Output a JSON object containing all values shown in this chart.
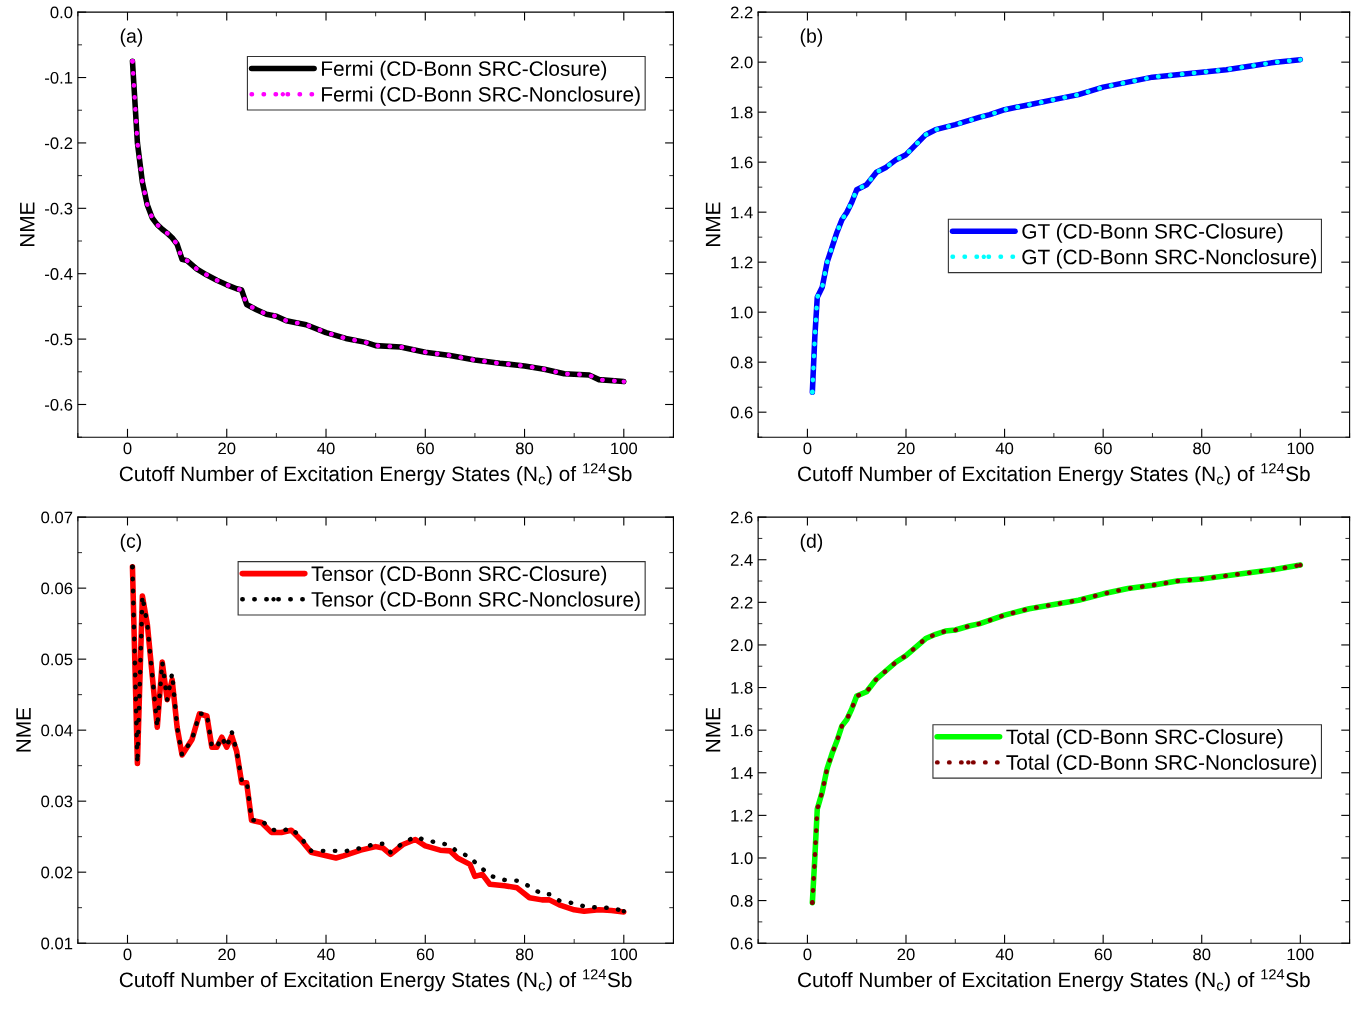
{
  "chart_data": [
    {
      "type": "line",
      "xlabel": "Cutoff Number of Excitation Energy States (N$_{c}$) of $^{124}$Sb",
      "ylabel": "NME",
      "annotations": [
        "(a)"
      ],
      "legend": "top right",
      "xlim": [
        -10,
        110
      ],
      "xticks": [
        0,
        20,
        40,
        60,
        80,
        100
      ],
      "ylim": [
        -0.65,
        0.0
      ],
      "yticks": [
        {
          "value": 0,
          "label": "0.0"
        },
        -0.1,
        -0.2,
        -0.3,
        -0.4,
        -0.5,
        -0.6
      ],
      "x": [
        1,
        2,
        3,
        4,
        5,
        6,
        7,
        8,
        9,
        10,
        11,
        12,
        14,
        16,
        18,
        20,
        22,
        23,
        24,
        26,
        28,
        30,
        32,
        36,
        40,
        44,
        48,
        50,
        55,
        60,
        65,
        70,
        75,
        80,
        84,
        88,
        93,
        95,
        100
      ],
      "series": [
        {
          "name": "Fermi (CD-Bonn SRC-Closure)",
          "color": "#000000",
          "line_style": "solid",
          "values": [
            -0.075,
            -0.2,
            -0.26,
            -0.295,
            -0.315,
            -0.325,
            -0.332,
            -0.338,
            -0.345,
            -0.355,
            -0.378,
            -0.38,
            -0.393,
            -0.402,
            -0.41,
            -0.417,
            -0.423,
            -0.425,
            -0.447,
            -0.455,
            -0.462,
            -0.465,
            -0.472,
            -0.478,
            -0.49,
            -0.499,
            -0.505,
            -0.51,
            -0.512,
            -0.52,
            -0.525,
            -0.532,
            -0.537,
            -0.541,
            -0.546,
            -0.553,
            -0.555,
            -0.562,
            -0.565
          ]
        },
        {
          "name": "Fermi (CD-Bonn SRC-Nonclosure)",
          "color": "#ff00ff",
          "line_style": "dotted",
          "values": [
            -0.075,
            -0.2,
            -0.26,
            -0.295,
            -0.315,
            -0.325,
            -0.332,
            -0.338,
            -0.345,
            -0.355,
            -0.378,
            -0.38,
            -0.393,
            -0.402,
            -0.41,
            -0.417,
            -0.423,
            -0.425,
            -0.447,
            -0.455,
            -0.462,
            -0.465,
            -0.472,
            -0.478,
            -0.49,
            -0.499,
            -0.505,
            -0.51,
            -0.512,
            -0.52,
            -0.525,
            -0.532,
            -0.537,
            -0.541,
            -0.546,
            -0.553,
            -0.555,
            -0.562,
            -0.565
          ]
        }
      ]
    },
    {
      "type": "line",
      "xlabel": "Cutoff Number of Excitation Energy States (N$_{c}$) of $^{124}$Sb",
      "ylabel": "NME",
      "annotations": [
        "(b)"
      ],
      "legend": "center right",
      "xlim": [
        -10,
        110
      ],
      "xticks": [
        0,
        20,
        40,
        60,
        80,
        100
      ],
      "ylim": [
        0.5,
        2.2
      ],
      "yticks": [
        0.6,
        0.8,
        {
          "value": 1,
          "label": "1.0"
        },
        1.2,
        1.4,
        1.6,
        1.8,
        {
          "value": 2,
          "label": "2.0"
        },
        2.2
      ],
      "x": [
        1,
        1.5,
        2,
        3,
        4,
        5,
        6,
        7,
        8,
        9,
        10,
        11,
        12,
        14,
        16,
        18,
        20,
        22,
        24,
        26,
        28,
        30,
        35,
        37,
        40,
        45,
        50,
        55,
        60,
        65,
        70,
        75,
        80,
        85,
        90,
        95,
        100
      ],
      "series": [
        {
          "name": "GT (CD-Bonn SRC-Closure)",
          "color": "#0000ff",
          "line_style": "solid",
          "values": [
            0.68,
            0.9,
            1.06,
            1.1,
            1.2,
            1.26,
            1.32,
            1.37,
            1.4,
            1.44,
            1.49,
            1.5,
            1.51,
            1.56,
            1.58,
            1.61,
            1.63,
            1.67,
            1.71,
            1.73,
            1.74,
            1.75,
            1.78,
            1.79,
            1.81,
            1.83,
            1.85,
            1.87,
            1.9,
            1.92,
            1.94,
            1.95,
            1.96,
            1.97,
            1.985,
            2.0,
            2.01
          ]
        },
        {
          "name": "GT (CD-Bonn SRC-Nonclosure)",
          "color": "#00ffff",
          "line_style": "dotted",
          "values": [
            0.68,
            0.9,
            1.06,
            1.1,
            1.2,
            1.26,
            1.32,
            1.37,
            1.4,
            1.44,
            1.49,
            1.5,
            1.51,
            1.56,
            1.58,
            1.61,
            1.63,
            1.67,
            1.71,
            1.73,
            1.74,
            1.75,
            1.78,
            1.79,
            1.81,
            1.83,
            1.85,
            1.87,
            1.9,
            1.92,
            1.94,
            1.95,
            1.96,
            1.97,
            1.985,
            2.0,
            2.01
          ]
        }
      ]
    },
    {
      "type": "line",
      "xlabel": "Cutoff Number of Excitation Energy States (N$_{c}$) of $^{124}$Sb",
      "ylabel": "NME",
      "annotations": [
        "(c)"
      ],
      "legend": "top right",
      "xlim": [
        -10,
        110
      ],
      "xticks": [
        0,
        20,
        40,
        60,
        80,
        100
      ],
      "ylim": [
        0.01,
        0.07
      ],
      "yticks": [
        0.01,
        0.02,
        0.03,
        0.04,
        0.05,
        0.06,
        0.07
      ],
      "x": [
        1,
        2,
        3,
        4,
        5,
        6,
        7,
        8,
        9,
        10,
        11,
        13,
        14.5,
        16,
        17,
        18,
        19,
        20,
        21,
        22,
        23,
        24,
        25,
        27,
        29,
        31,
        33,
        35,
        37,
        39,
        42,
        43.5,
        47,
        50,
        51.5,
        53,
        55.5,
        58,
        60,
        63,
        65,
        66.5,
        69,
        70,
        71.5,
        73,
        76,
        78.5,
        81,
        83.5,
        85,
        87,
        90,
        92,
        95,
        97.5,
        100
      ],
      "series": [
        {
          "name": "Tensor (CD-Bonn SRC-Closure)",
          "color": "#ff0000",
          "line_style": "solid",
          "values": [
            0.063,
            0.0353,
            0.0589,
            0.0549,
            0.0476,
            0.0404,
            0.0496,
            0.0443,
            0.0471,
            0.0404,
            0.0365,
            0.0387,
            0.0423,
            0.042,
            0.0376,
            0.0376,
            0.039,
            0.0376,
            0.0392,
            0.037,
            0.0326,
            0.0326,
            0.0273,
            0.027,
            0.0256,
            0.0256,
            0.0259,
            0.0245,
            0.0228,
            0.0225,
            0.022,
            0.0223,
            0.0231,
            0.0236,
            0.0234,
            0.0225,
            0.0239,
            0.0246,
            0.0237,
            0.0231,
            0.023,
            0.022,
            0.0211,
            0.0194,
            0.0197,
            0.0183,
            0.0181,
            0.0178,
            0.0164,
            0.0161,
            0.0161,
            0.0154,
            0.0147,
            0.0145,
            0.0147,
            0.0146,
            0.0144
          ]
        },
        {
          "name": "Tensor (CD-Bonn SRC-Nonclosure)",
          "color": "#000000",
          "line_style": "dotted",
          "values": [
            0.063,
            0.0353,
            0.0589,
            0.0549,
            0.0476,
            0.0404,
            0.0496,
            0.0443,
            0.048,
            0.0404,
            0.0365,
            0.0387,
            0.0423,
            0.0423,
            0.0376,
            0.0376,
            0.039,
            0.0376,
            0.0398,
            0.037,
            0.033,
            0.033,
            0.0273,
            0.0273,
            0.026,
            0.0258,
            0.0262,
            0.0248,
            0.023,
            0.023,
            0.023,
            0.0229,
            0.0234,
            0.024,
            0.024,
            0.0228,
            0.0241,
            0.025,
            0.0245,
            0.0241,
            0.0238,
            0.0228,
            0.0222,
            0.0214,
            0.0205,
            0.0195,
            0.0189,
            0.0188,
            0.018,
            0.0169,
            0.0169,
            0.016,
            0.0156,
            0.0152,
            0.015,
            0.015,
            0.0145
          ]
        }
      ]
    },
    {
      "type": "line",
      "xlabel": "Cutoff Number of Excitation Energy States (N$_{c}$) of $^{124}$Sb",
      "ylabel": "NME",
      "annotations": [
        "(d)"
      ],
      "legend": "center right",
      "xlim": [
        -10,
        110
      ],
      "xticks": [
        0,
        20,
        40,
        60,
        80,
        100
      ],
      "ylim": [
        0.6,
        2.6
      ],
      "yticks": [
        0.6,
        0.8,
        {
          "value": 1,
          "label": "1.0"
        },
        1.2,
        1.4,
        1.6,
        1.8,
        {
          "value": 2,
          "label": "2.0"
        },
        2.2,
        2.4,
        2.6
      ],
      "x": [
        1,
        1.5,
        2,
        3,
        4,
        5,
        6,
        7,
        8,
        9,
        10,
        12,
        14,
        16,
        18,
        20,
        22,
        24,
        26,
        28,
        30,
        33,
        35,
        40,
        45,
        50,
        55,
        60,
        65,
        70,
        75,
        80,
        85,
        90,
        95,
        100
      ],
      "series": [
        {
          "name": "Total (CD-Bonn SRC-Closure)",
          "color": "#00ff00",
          "line_style": "solid",
          "values": [
            0.79,
            1.0,
            1.23,
            1.31,
            1.42,
            1.49,
            1.55,
            1.62,
            1.65,
            1.7,
            1.76,
            1.78,
            1.84,
            1.88,
            1.92,
            1.95,
            1.99,
            2.03,
            2.05,
            2.065,
            2.07,
            2.09,
            2.1,
            2.14,
            2.17,
            2.19,
            2.21,
            2.24,
            2.265,
            2.28,
            2.3,
            2.31,
            2.325,
            2.34,
            2.355,
            2.375
          ]
        },
        {
          "name": "Total (CD-Bonn SRC-Nonclosure)",
          "color": "#800000",
          "line_style": "dotted",
          "values": [
            0.79,
            1.0,
            1.23,
            1.31,
            1.42,
            1.49,
            1.55,
            1.62,
            1.65,
            1.7,
            1.76,
            1.78,
            1.84,
            1.88,
            1.92,
            1.95,
            1.99,
            2.03,
            2.05,
            2.065,
            2.07,
            2.09,
            2.1,
            2.14,
            2.17,
            2.19,
            2.21,
            2.24,
            2.265,
            2.28,
            2.3,
            2.31,
            2.325,
            2.34,
            2.355,
            2.375
          ]
        }
      ]
    }
  ]
}
